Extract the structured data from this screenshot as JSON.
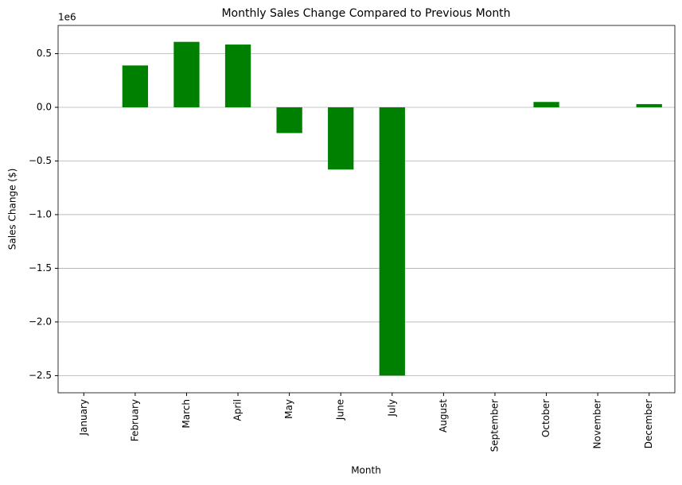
{
  "chart_data": {
    "type": "bar",
    "title": "Monthly Sales Change Compared to Previous Month",
    "x_label": "Month",
    "y_label": "Sales Change ($)",
    "y_offset_label": "1e6",
    "categories": [
      "January",
      "February",
      "March",
      "April",
      "May",
      "June",
      "July",
      "August",
      "September",
      "October",
      "November",
      "December"
    ],
    "values": [
      0,
      0.39,
      0.61,
      0.585,
      -0.24,
      -0.58,
      -2.5,
      0,
      0,
      0.05,
      0,
      0.03
    ],
    "color": "#008000",
    "ylim": [
      -2.66,
      0.763
    ],
    "yticks": [
      {
        "value": -2.5,
        "label": "−2.5"
      },
      {
        "value": -2.0,
        "label": "−2.0"
      },
      {
        "value": -1.5,
        "label": "−1.5"
      },
      {
        "value": -1.0,
        "label": "−1.0"
      },
      {
        "value": -0.5,
        "label": "−0.5"
      },
      {
        "value": 0.0,
        "label": "0.0"
      },
      0.5
    ],
    "grid": true
  }
}
